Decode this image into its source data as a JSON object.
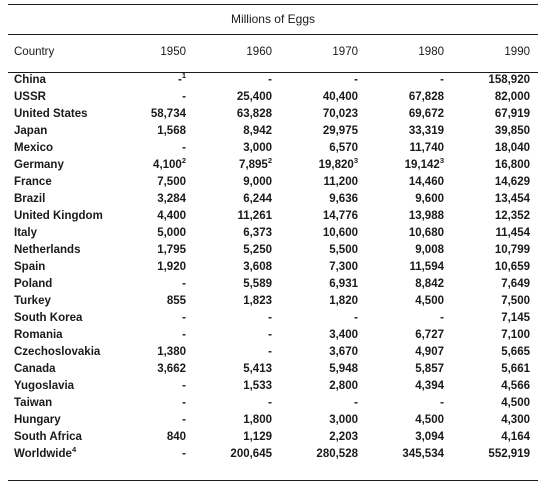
{
  "table": {
    "super_header": "Millions of Eggs",
    "columns": [
      "Country",
      "1950",
      "1960",
      "1970",
      "1980",
      "1990"
    ],
    "rows": [
      {
        "country": "China",
        "values": [
          {
            "v": "-",
            "sup": "1"
          },
          {
            "v": "-"
          },
          {
            "v": "-"
          },
          {
            "v": "-"
          },
          {
            "v": "158,920"
          }
        ]
      },
      {
        "country": "USSR",
        "values": [
          {
            "v": "-"
          },
          {
            "v": "25,400"
          },
          {
            "v": "40,400"
          },
          {
            "v": "67,828"
          },
          {
            "v": "82,000"
          }
        ]
      },
      {
        "country": "United States",
        "values": [
          {
            "v": "58,734"
          },
          {
            "v": "63,828"
          },
          {
            "v": "70,023"
          },
          {
            "v": "69,672"
          },
          {
            "v": "67,919"
          }
        ]
      },
      {
        "country": "Japan",
        "values": [
          {
            "v": "1,568"
          },
          {
            "v": "8,942"
          },
          {
            "v": "29,975"
          },
          {
            "v": "33,319"
          },
          {
            "v": "39,850"
          }
        ]
      },
      {
        "country": "Mexico",
        "values": [
          {
            "v": "-"
          },
          {
            "v": "3,000"
          },
          {
            "v": "6,570"
          },
          {
            "v": "11,740"
          },
          {
            "v": "18,040"
          }
        ]
      },
      {
        "country": "Germany",
        "values": [
          {
            "v": "4,100",
            "sup": "2"
          },
          {
            "v": "7,895",
            "sup": "2"
          },
          {
            "v": "19,820",
            "sup": "3"
          },
          {
            "v": "19,142",
            "sup": "3"
          },
          {
            "v": "16,800"
          }
        ]
      },
      {
        "country": "France",
        "values": [
          {
            "v": "7,500"
          },
          {
            "v": "9,000"
          },
          {
            "v": "11,200"
          },
          {
            "v": "14,460"
          },
          {
            "v": "14,629"
          }
        ]
      },
      {
        "country": "Brazil",
        "values": [
          {
            "v": "3,284"
          },
          {
            "v": "6,244"
          },
          {
            "v": "9,636"
          },
          {
            "v": "9,600"
          },
          {
            "v": "13,454"
          }
        ]
      },
      {
        "country": "United Kingdom",
        "values": [
          {
            "v": "4,400"
          },
          {
            "v": "11,261"
          },
          {
            "v": "14,776"
          },
          {
            "v": "13,988"
          },
          {
            "v": "12,352"
          }
        ]
      },
      {
        "country": "Italy",
        "values": [
          {
            "v": "5,000"
          },
          {
            "v": "6,373"
          },
          {
            "v": "10,600"
          },
          {
            "v": "10,680"
          },
          {
            "v": "11,454"
          }
        ]
      },
      {
        "country": "Netherlands",
        "values": [
          {
            "v": "1,795"
          },
          {
            "v": "5,250"
          },
          {
            "v": "5,500"
          },
          {
            "v": "9,008"
          },
          {
            "v": "10,799"
          }
        ]
      },
      {
        "country": "Spain",
        "values": [
          {
            "v": "1,920"
          },
          {
            "v": "3,608"
          },
          {
            "v": "7,300"
          },
          {
            "v": "11,594"
          },
          {
            "v": "10,659"
          }
        ]
      },
      {
        "country": "Poland",
        "values": [
          {
            "v": "-"
          },
          {
            "v": "5,589"
          },
          {
            "v": "6,931"
          },
          {
            "v": "8,842"
          },
          {
            "v": "7,649"
          }
        ]
      },
      {
        "country": "Turkey",
        "values": [
          {
            "v": "855"
          },
          {
            "v": "1,823"
          },
          {
            "v": "1,820"
          },
          {
            "v": "4,500"
          },
          {
            "v": "7,500"
          }
        ]
      },
      {
        "country": "South Korea",
        "values": [
          {
            "v": "-"
          },
          {
            "v": "-"
          },
          {
            "v": "-"
          },
          {
            "v": "-"
          },
          {
            "v": "7,145"
          }
        ]
      },
      {
        "country": "Romania",
        "values": [
          {
            "v": "-"
          },
          {
            "v": "-"
          },
          {
            "v": "3,400"
          },
          {
            "v": "6,727"
          },
          {
            "v": "7,100"
          }
        ]
      },
      {
        "country": "Czechoslovakia",
        "values": [
          {
            "v": "1,380"
          },
          {
            "v": "-"
          },
          {
            "v": "3,670"
          },
          {
            "v": "4,907"
          },
          {
            "v": "5,665"
          }
        ]
      },
      {
        "country": "Canada",
        "values": [
          {
            "v": "3,662"
          },
          {
            "v": "5,413"
          },
          {
            "v": "5,948"
          },
          {
            "v": "5,857"
          },
          {
            "v": "5,661"
          }
        ]
      },
      {
        "country": "Yugoslavia",
        "values": [
          {
            "v": "-"
          },
          {
            "v": "1,533"
          },
          {
            "v": "2,800"
          },
          {
            "v": "4,394"
          },
          {
            "v": "4,566"
          }
        ]
      },
      {
        "country": "Taiwan",
        "values": [
          {
            "v": "-"
          },
          {
            "v": "-"
          },
          {
            "v": "-"
          },
          {
            "v": "-"
          },
          {
            "v": "4,500"
          }
        ]
      },
      {
        "country": "Hungary",
        "values": [
          {
            "v": "-"
          },
          {
            "v": "1,800"
          },
          {
            "v": "3,000"
          },
          {
            "v": "4,500"
          },
          {
            "v": "4,300"
          }
        ]
      },
      {
        "country": "South Africa",
        "values": [
          {
            "v": "840"
          },
          {
            "v": "1,129"
          },
          {
            "v": "2,203"
          },
          {
            "v": "3,094"
          },
          {
            "v": "4,164"
          }
        ]
      },
      {
        "country": "Worldwide",
        "country_sup": "4",
        "values": [
          {
            "v": "-"
          },
          {
            "v": "200,645"
          },
          {
            "v": "280,528"
          },
          {
            "v": "345,534"
          },
          {
            "v": "552,919"
          }
        ]
      }
    ]
  }
}
